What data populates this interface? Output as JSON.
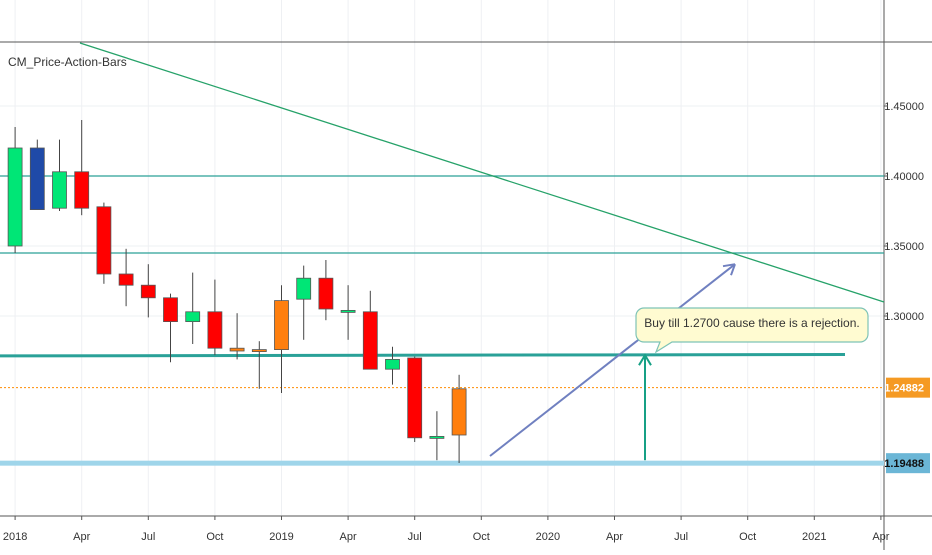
{
  "indicator_label": "CM_Price-Action-Bars",
  "annotation": "Buy till 1.2700 cause there is a rejection.",
  "price_tags": [
    {
      "label": "1.24882",
      "value": 1.24882,
      "bg": "#f59a23",
      "fg": "#ffffff"
    },
    {
      "label": "1.19488",
      "value": 1.19488,
      "bg": "#6bb6d6",
      "fg": "#111111"
    }
  ],
  "colors": {
    "up": "#ffffff",
    "bear": "#ff0000",
    "bull": "#00e676",
    "bear_inside": "#ff7f0e",
    "bull_inside": "#1f4aa8",
    "level_line": "#2aa198",
    "trend_line": "#26a269",
    "arrow": "#7080c0",
    "vertical_arrow": "#16a085",
    "current_price": "#ff8c00",
    "support": "#9fd5ea"
  },
  "chart_data": {
    "type": "candlestick",
    "symbol_timeframe": "monthly",
    "x": [
      "2018-01",
      "2018-02",
      "2018-03",
      "2018-04",
      "2018-05",
      "2018-06",
      "2018-07",
      "2018-08",
      "2018-09",
      "2018-10",
      "2018-11",
      "2018-12",
      "2019-01",
      "2019-02",
      "2019-03",
      "2019-04",
      "2019-05",
      "2019-06",
      "2019-07",
      "2019-08",
      "2019-09"
    ],
    "series": [
      {
        "x": "2018-01",
        "open": 1.35,
        "high": 1.435,
        "low": 1.345,
        "close": 1.42,
        "color": "bull"
      },
      {
        "x": "2018-02",
        "open": 1.42,
        "high": 1.426,
        "low": 1.376,
        "close": 1.376,
        "color": "bull_inside"
      },
      {
        "x": "2018-03",
        "open": 1.377,
        "high": 1.426,
        "low": 1.375,
        "close": 1.403,
        "color": "bull"
      },
      {
        "x": "2018-04",
        "open": 1.403,
        "high": 1.44,
        "low": 1.372,
        "close": 1.377,
        "color": "bear"
      },
      {
        "x": "2018-05",
        "open": 1.378,
        "high": 1.381,
        "low": 1.323,
        "close": 1.33,
        "color": "bear"
      },
      {
        "x": "2018-06",
        "open": 1.33,
        "high": 1.348,
        "low": 1.307,
        "close": 1.322,
        "color": "bear"
      },
      {
        "x": "2018-07",
        "open": 1.322,
        "high": 1.337,
        "low": 1.299,
        "close": 1.313,
        "color": "bear"
      },
      {
        "x": "2018-08",
        "open": 1.313,
        "high": 1.316,
        "low": 1.267,
        "close": 1.296,
        "color": "bear"
      },
      {
        "x": "2018-09",
        "open": 1.296,
        "high": 1.331,
        "low": 1.28,
        "close": 1.303,
        "color": "bull"
      },
      {
        "x": "2018-10",
        "open": 1.303,
        "high": 1.326,
        "low": 1.272,
        "close": 1.277,
        "color": "bear"
      },
      {
        "x": "2018-11",
        "open": 1.275,
        "high": 1.302,
        "low": 1.269,
        "close": 1.277,
        "color": "bear_inside"
      },
      {
        "x": "2018-12",
        "open": 1.276,
        "high": 1.282,
        "low": 1.248,
        "close": 1.275,
        "color": "bear_inside"
      },
      {
        "x": "2019-01",
        "open": 1.276,
        "high": 1.322,
        "low": 1.245,
        "close": 1.311,
        "color": "bear_inside"
      },
      {
        "x": "2019-02",
        "open": 1.312,
        "high": 1.336,
        "low": 1.283,
        "close": 1.327,
        "color": "bull"
      },
      {
        "x": "2019-03",
        "open": 1.327,
        "high": 1.34,
        "low": 1.297,
        "close": 1.305,
        "color": "bear"
      },
      {
        "x": "2019-04",
        "open": 1.304,
        "high": 1.322,
        "low": 1.283,
        "close": 1.304,
        "color": "bull"
      },
      {
        "x": "2019-05",
        "open": 1.303,
        "high": 1.318,
        "low": 1.262,
        "close": 1.262,
        "color": "bear"
      },
      {
        "x": "2019-06",
        "open": 1.262,
        "high": 1.278,
        "low": 1.251,
        "close": 1.269,
        "color": "bull"
      },
      {
        "x": "2019-07",
        "open": 1.27,
        "high": 1.271,
        "low": 1.21,
        "close": 1.213,
        "color": "bear"
      },
      {
        "x": "2019-08",
        "open": 1.214,
        "high": 1.232,
        "low": 1.197,
        "close": 1.214,
        "color": "bull"
      },
      {
        "x": "2019-09",
        "open": 1.215,
        "high": 1.258,
        "low": 1.195,
        "close": 1.248,
        "color": "bear_inside"
      }
    ],
    "yaxis_ticks": [
      1.45,
      1.4,
      1.35,
      1.3
    ],
    "yaxis_tick_labels": [
      "1.45000",
      "1.40000",
      "1.35000",
      "1.30000"
    ],
    "xaxis_ticks": [
      "2018-01",
      "2018-04",
      "2018-07",
      "2018-10",
      "2019-01",
      "2019-04",
      "2019-07",
      "2019-10",
      "2020-01",
      "2020-04",
      "2020-07",
      "2020-10",
      "2021-01",
      "2021-04"
    ],
    "xaxis_tick_labels": [
      "2018",
      "Apr",
      "Jul",
      "Oct",
      "2019",
      "Apr",
      "Jul",
      "Oct",
      "2020",
      "Apr",
      "Jul",
      "Oct",
      "2021",
      "Apr"
    ],
    "ylim": [
      1.175,
      1.5
    ],
    "xlim": [
      "2017-12",
      "2021-05"
    ],
    "horizontal_levels": [
      1.4,
      1.345,
      1.27
    ],
    "trendline": {
      "from": [
        "2018-04",
        1.495
      ],
      "to": [
        "2021-04",
        1.31
      ]
    },
    "projection_arrow": {
      "from": [
        "2019-10",
        1.2
      ],
      "to": [
        "2020-10",
        1.337
      ]
    },
    "vertical_arrow": {
      "x": "2020-06",
      "from": 1.197,
      "to": 1.272
    },
    "current_price": 1.24882,
    "support_level": 1.19488,
    "grid": true
  }
}
